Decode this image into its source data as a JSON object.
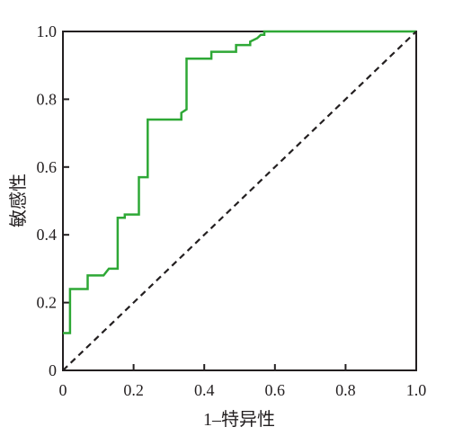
{
  "chart_data": {
    "type": "line",
    "title": "",
    "xlabel": "1–特异性",
    "ylabel": "敏感性",
    "xlim": [
      0,
      1.0
    ],
    "ylim": [
      0,
      1.0
    ],
    "xticks": [
      "0",
      "0.2",
      "0.4",
      "0.6",
      "0.8",
      "1.0"
    ],
    "yticks": [
      "0",
      "0.2",
      "0.4",
      "0.6",
      "0.8",
      "1.0"
    ],
    "grid": false,
    "legend": "none",
    "series": [
      {
        "style": "solid",
        "color": "#2ea836",
        "x": [
          0.0,
          0.02,
          0.02,
          0.07,
          0.07,
          0.115,
          0.13,
          0.155,
          0.155,
          0.175,
          0.175,
          0.215,
          0.215,
          0.24,
          0.24,
          0.335,
          0.335,
          0.35,
          0.35,
          0.42,
          0.42,
          0.49,
          0.49,
          0.53,
          0.53,
          0.55,
          0.56,
          0.57,
          0.57,
          1.0
        ],
        "y": [
          0.11,
          0.11,
          0.24,
          0.24,
          0.28,
          0.28,
          0.3,
          0.3,
          0.45,
          0.45,
          0.46,
          0.46,
          0.57,
          0.57,
          0.74,
          0.74,
          0.76,
          0.77,
          0.92,
          0.92,
          0.94,
          0.94,
          0.96,
          0.96,
          0.97,
          0.98,
          0.99,
          0.99,
          1.0,
          1.0
        ]
      },
      {
        "style": "dashed",
        "color": "#231f20",
        "x": [
          0.0,
          1.0
        ],
        "y": [
          0.0,
          1.0
        ]
      }
    ]
  }
}
